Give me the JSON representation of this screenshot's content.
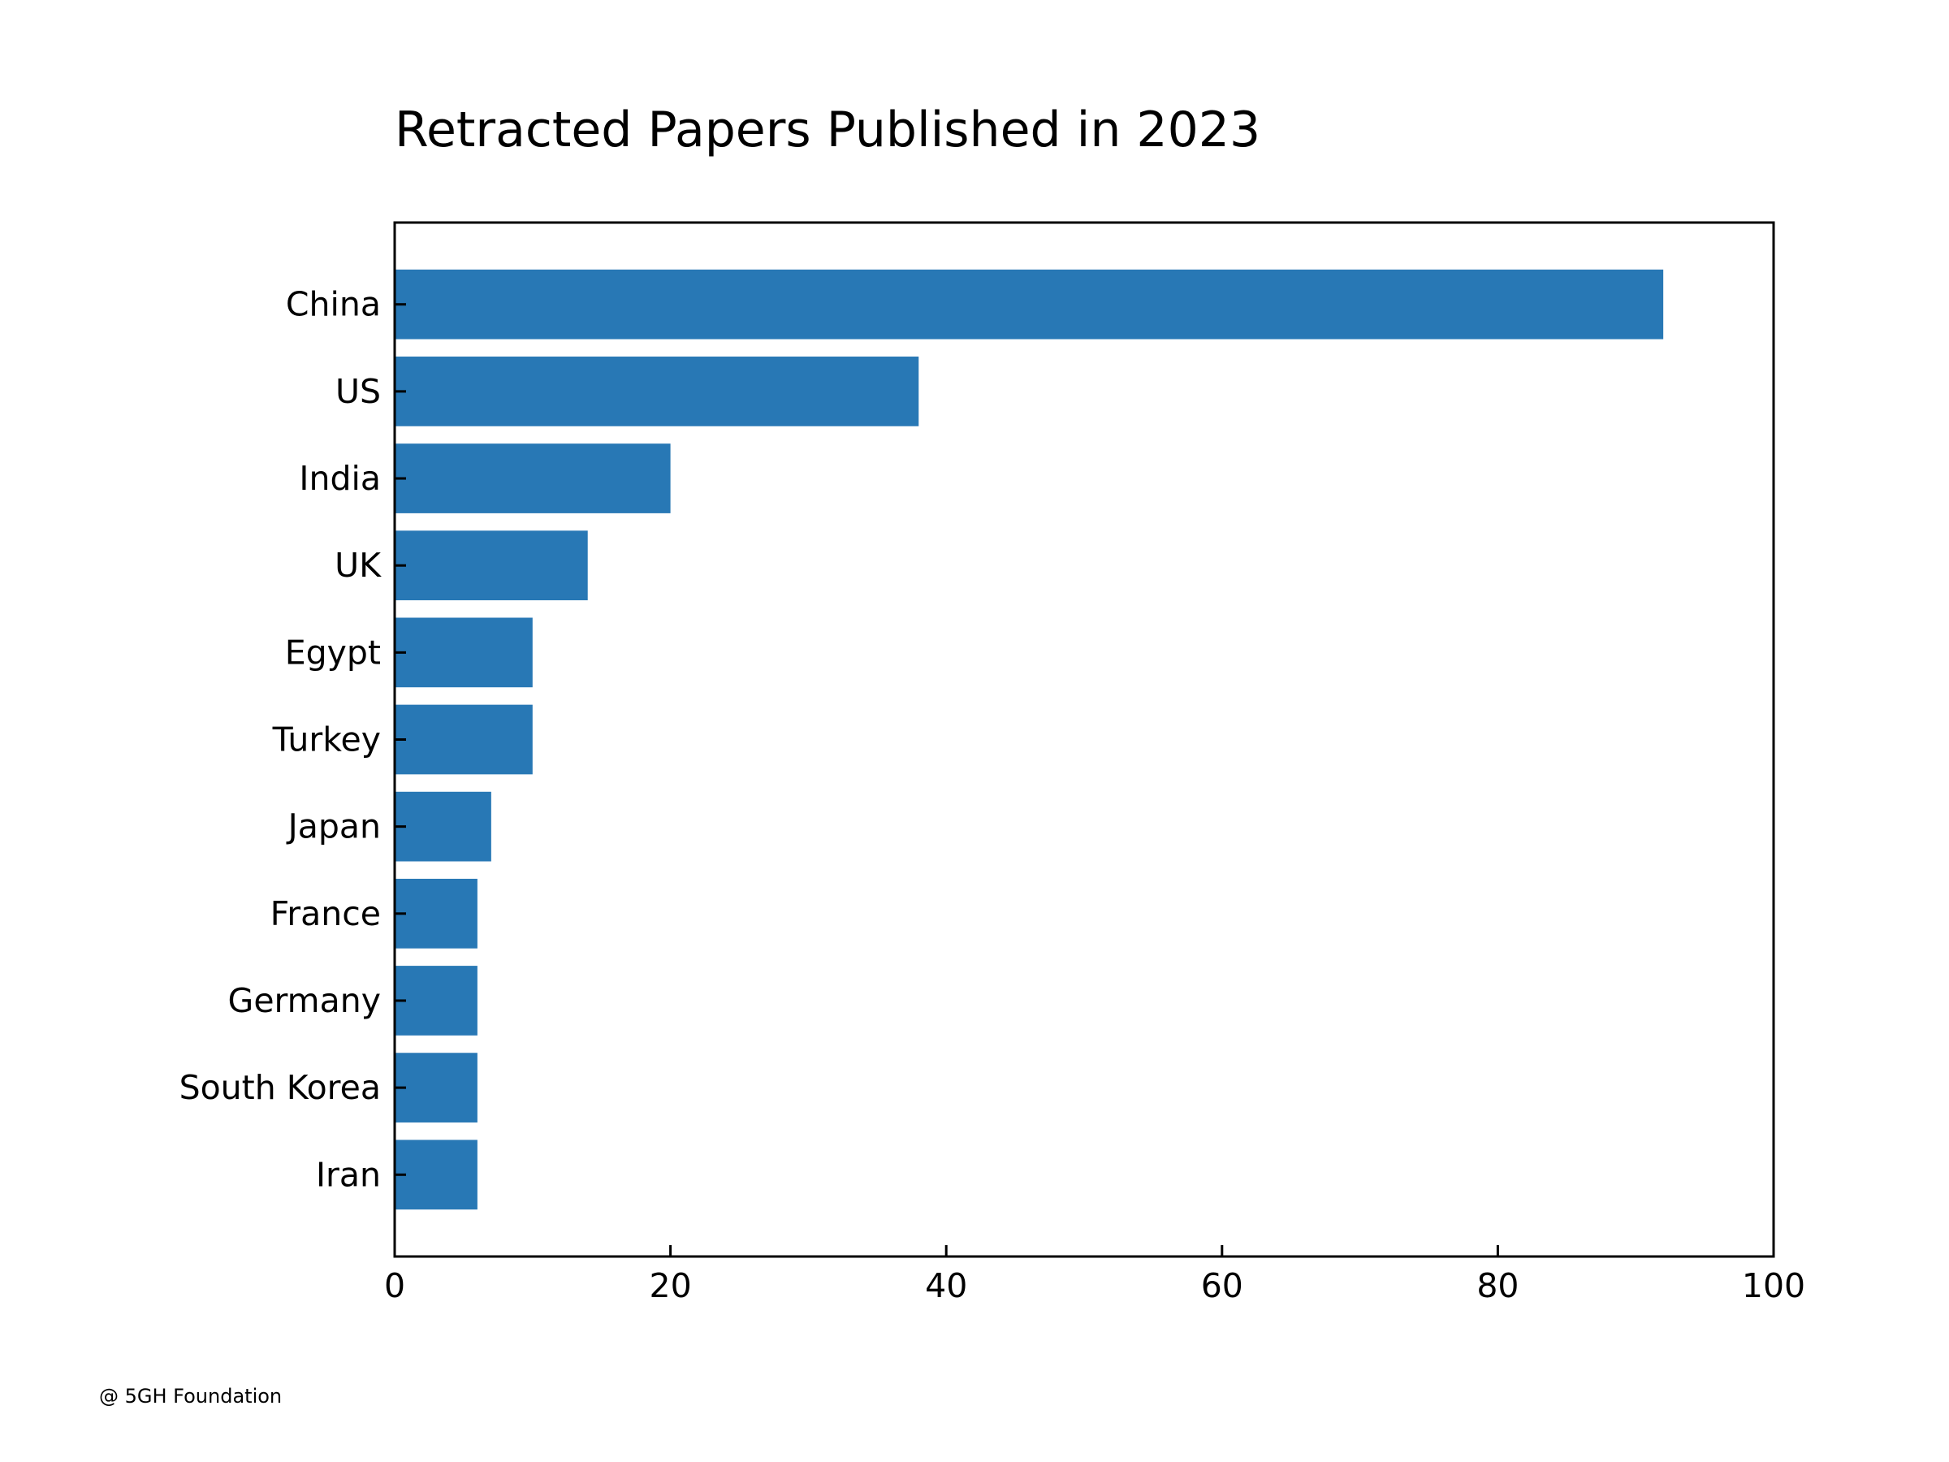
{
  "chart_data": {
    "type": "bar",
    "orientation": "horizontal",
    "title": "Retracted Papers Published in 2023",
    "xlabel": "",
    "ylabel": "",
    "categories": [
      "China",
      "US",
      "India",
      "UK",
      "Egypt",
      "Turkey",
      "Japan",
      "France",
      "Germany",
      "South Korea",
      "Iran"
    ],
    "values": [
      92,
      38,
      20,
      14,
      10,
      10,
      7,
      6,
      6,
      6,
      6
    ],
    "xlim": [
      0,
      100
    ],
    "xticks": [
      0,
      20,
      40,
      60,
      80,
      100
    ],
    "grid": false,
    "legend": "none",
    "bar_color": "#2878b5"
  },
  "footer": {
    "credit": "@ 5GH Foundation"
  }
}
